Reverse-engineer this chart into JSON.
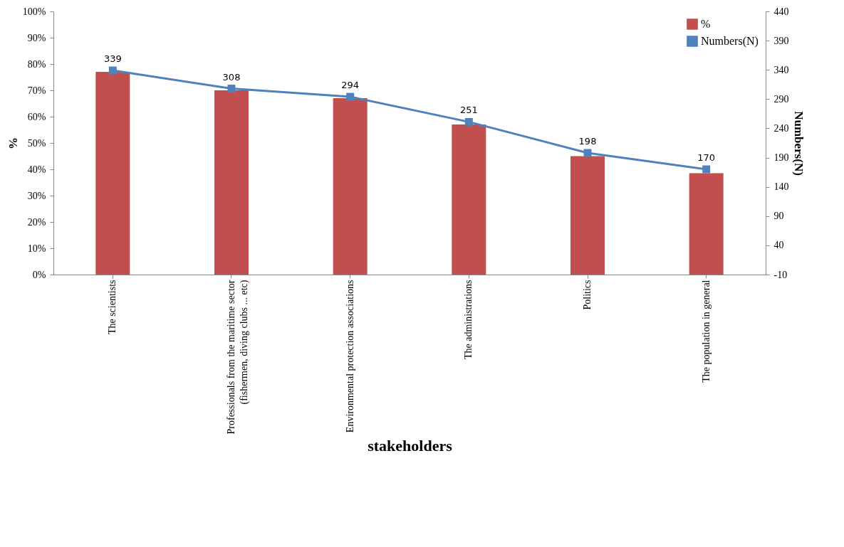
{
  "chart_data": {
    "type": "bar",
    "xlabel": "stakeholders",
    "ylabel": "%",
    "y2label": "Numbers(N)",
    "categories": [
      "The scientists",
      "Professionals from the maritime  sector\n(fishermen, diving clubs ... etc)",
      "Environmental protection associations",
      "The administrations",
      "Politics",
      "The population in general"
    ],
    "series": [
      {
        "name": "%",
        "color": "#c0504d",
        "values": [
          77,
          70,
          67,
          57,
          45,
          38.5
        ]
      },
      {
        "name": "Numbers(N)",
        "type": "line",
        "axis": "y2",
        "color": "#4f81bd",
        "marker": "square",
        "values": [
          339,
          308,
          294,
          251,
          198,
          170
        ],
        "value_labels": [
          "339",
          "308",
          "294",
          "251",
          "198",
          "170"
        ]
      }
    ],
    "ylim": [
      0,
      100
    ],
    "yticks": [
      {
        "value": 0,
        "label": "0%"
      },
      {
        "value": 10,
        "label": "10%"
      },
      {
        "value": 20,
        "label": "20%"
      },
      {
        "value": 30,
        "label": "30%"
      },
      {
        "value": 40,
        "label": "40%"
      },
      {
        "value": 50,
        "label": "50%"
      },
      {
        "value": 60,
        "label": "60%"
      },
      {
        "value": 70,
        "label": "70%"
      },
      {
        "value": 80,
        "label": "80%"
      },
      {
        "value": 90,
        "label": "90%"
      },
      {
        "value": 100,
        "label": "100%"
      }
    ],
    "y2lim": [
      -10,
      440
    ],
    "y2ticks": [
      -10,
      40,
      90,
      140,
      190,
      240,
      290,
      340,
      390,
      440
    ],
    "legend": "top right",
    "grid": false
  }
}
